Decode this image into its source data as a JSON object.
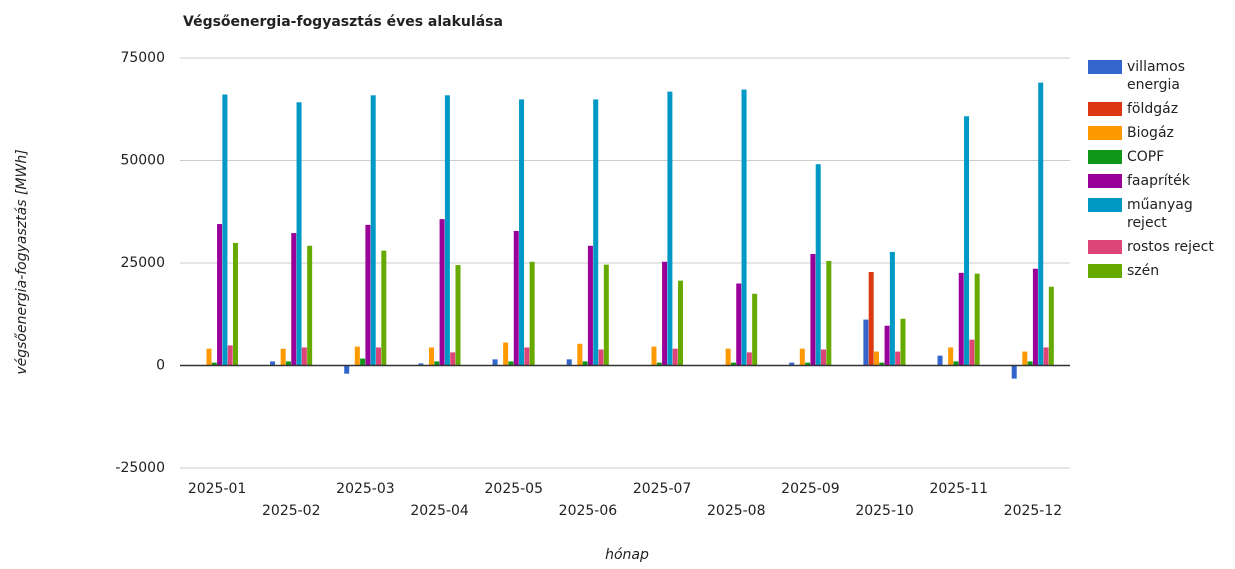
{
  "chart_data": {
    "type": "bar",
    "title": "Végsőenergia-fogyasztás éves alakulása",
    "x_label": "hónap",
    "y_label": "végsőenergia-fogyasztás [MWh]",
    "categories": [
      "2025-01",
      "2025-02",
      "2025-03",
      "2025-04",
      "2025-05",
      "2025-06",
      "2025-07",
      "2025-08",
      "2025-09",
      "2025-10",
      "2025-11",
      "2025-12"
    ],
    "series": [
      {
        "name": "villamos energia",
        "color": "#3366cc",
        "values": [
          0,
          1000,
          -2000,
          500,
          1500,
          1500,
          0,
          0,
          700,
          11200,
          2400,
          -3200
        ]
      },
      {
        "name": "földgáz",
        "color": "#dc3912",
        "values": [
          0,
          0,
          0,
          0,
          0,
          0,
          0,
          0,
          0,
          22800,
          0,
          0
        ]
      },
      {
        "name": "Biogáz",
        "color": "#ff9900",
        "values": [
          4100,
          4100,
          4600,
          4400,
          5600,
          5300,
          4600,
          4100,
          4100,
          3400,
          4400,
          3400
        ]
      },
      {
        "name": "COPF",
        "color": "#109618",
        "values": [
          700,
          1000,
          1700,
          1000,
          1000,
          1000,
          700,
          700,
          700,
          700,
          1000,
          1000
        ]
      },
      {
        "name": "faapríték",
        "color": "#990099",
        "values": [
          34500,
          32300,
          34300,
          35700,
          32800,
          29200,
          25300,
          20000,
          27200,
          9700,
          22600,
          23600
        ]
      },
      {
        "name": "műanyag reject",
        "color": "#0099c6",
        "values": [
          66100,
          64200,
          65900,
          65900,
          64900,
          64900,
          66800,
          67300,
          49100,
          27700,
          60800,
          69000
        ]
      },
      {
        "name": "rostos reject",
        "color": "#dd4477",
        "values": [
          4900,
          4400,
          4400,
          3200,
          4400,
          3900,
          4100,
          3200,
          3900,
          3400,
          6300,
          4400
        ]
      },
      {
        "name": "szén",
        "color": "#66aa00",
        "values": [
          29900,
          29200,
          28000,
          24500,
          25300,
          24600,
          20700,
          17500,
          25500,
          11400,
          22400,
          19200
        ]
      }
    ],
    "ylim": [
      -25000,
      75000
    ],
    "yticks": [
      -25000,
      0,
      25000,
      50000,
      75000
    ],
    "grid": true,
    "legend": "right"
  }
}
